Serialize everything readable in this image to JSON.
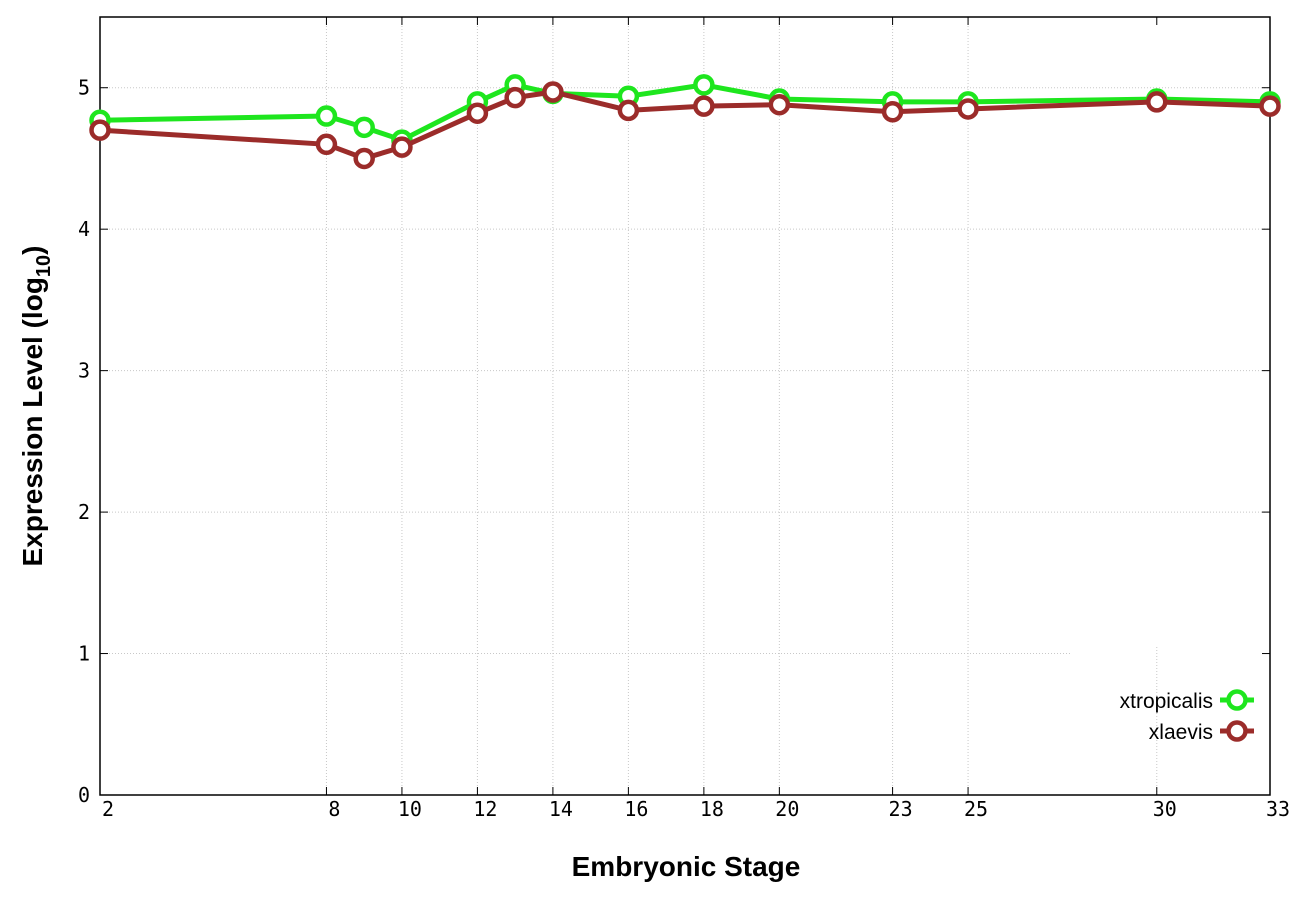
{
  "chart_data": {
    "type": "line",
    "xlabel": "Embryonic Stage",
    "ylabel_main": "Expression Level (log",
    "ylabel_sub": "10",
    "ylabel_close": ")",
    "xlim": [
      2,
      33
    ],
    "ylim": [
      0,
      5.5
    ],
    "x_ticks": [
      2,
      8,
      10,
      12,
      14,
      16,
      18,
      20,
      23,
      25,
      30,
      33
    ],
    "y_ticks": [
      0,
      1,
      2,
      3,
      4,
      5
    ],
    "grid": true,
    "legend_position": "bottom-right",
    "x": [
      2,
      8,
      9,
      10,
      12,
      13,
      14,
      16,
      18,
      20,
      23,
      25,
      30,
      33
    ],
    "series": [
      {
        "name": "xtropicalis",
        "color": "#1ee61e",
        "values": [
          4.77,
          4.8,
          4.72,
          4.63,
          4.9,
          5.02,
          4.96,
          4.94,
          5.02,
          4.92,
          4.9,
          4.9,
          4.92,
          4.9
        ]
      },
      {
        "name": "xlaevis",
        "color": "#9b2c2a",
        "values": [
          4.7,
          4.6,
          4.5,
          4.58,
          4.82,
          4.93,
          4.97,
          4.84,
          4.87,
          4.88,
          4.83,
          4.85,
          4.9,
          4.87
        ]
      }
    ]
  }
}
